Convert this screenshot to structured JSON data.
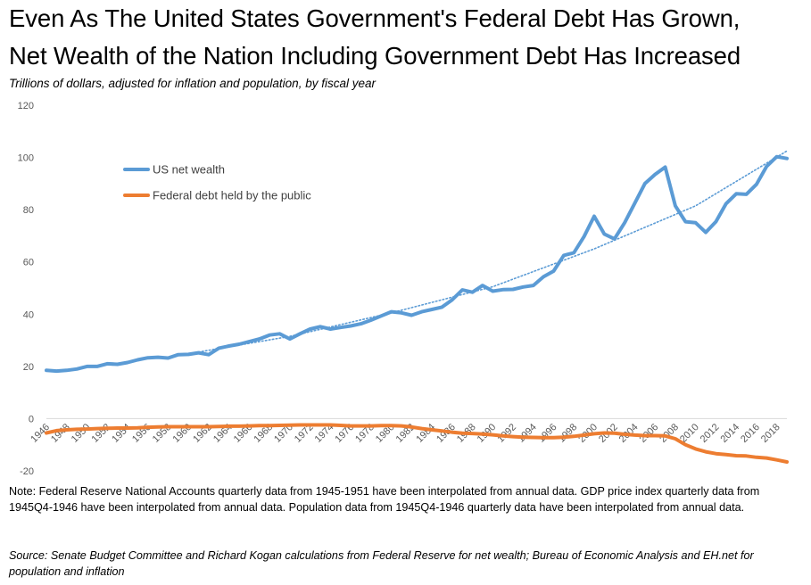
{
  "chart_data": {
    "type": "line",
    "title_line1": "Even As The United States Government's Federal Debt Has Grown,",
    "title_line2": "Net Wealth of the Nation Including Government Debt Has Increased",
    "subtitle": "Trillions of dollars, adjusted for inflation and population, by fiscal year",
    "ylim": [
      -20,
      120
    ],
    "yticks": [
      "120",
      "100",
      "80",
      "60",
      "40",
      "20",
      "0",
      "-20"
    ],
    "ytick_values": [
      120,
      100,
      80,
      60,
      40,
      20,
      0,
      -20
    ],
    "xlim": [
      1946,
      2019
    ],
    "x_tick_labels": [
      "1946",
      "1948",
      "1950",
      "1952",
      "1954",
      "1956",
      "1958",
      "1960",
      "1962",
      "1964",
      "1966",
      "1968",
      "1970",
      "1972",
      "1974",
      "1976",
      "1978",
      "1980",
      "1982",
      "1984",
      "1986",
      "1988",
      "1990",
      "1992",
      "1994",
      "1996",
      "1998",
      "2000",
      "2002",
      "2004",
      "2006",
      "2008",
      "2010",
      "2012",
      "2014",
      "2016",
      "2018"
    ],
    "x_tick_values": [
      1946,
      1948,
      1950,
      1952,
      1954,
      1956,
      1958,
      1960,
      1962,
      1964,
      1966,
      1968,
      1970,
      1972,
      1974,
      1976,
      1978,
      1980,
      1982,
      1984,
      1986,
      1988,
      1990,
      1992,
      1994,
      1996,
      1998,
      2000,
      2002,
      2004,
      2006,
      2008,
      2010,
      2012,
      2014,
      2016,
      2018
    ],
    "x": [
      1946,
      1947,
      1948,
      1949,
      1950,
      1951,
      1952,
      1953,
      1954,
      1955,
      1956,
      1957,
      1958,
      1959,
      1960,
      1961,
      1962,
      1963,
      1964,
      1965,
      1966,
      1967,
      1968,
      1969,
      1970,
      1971,
      1972,
      1973,
      1974,
      1975,
      1976,
      1977,
      1978,
      1979,
      1980,
      1981,
      1982,
      1983,
      1984,
      1985,
      1986,
      1987,
      1988,
      1989,
      1990,
      1991,
      1992,
      1993,
      1994,
      1995,
      1996,
      1997,
      1998,
      1999,
      2000,
      2001,
      2002,
      2003,
      2004,
      2005,
      2006,
      2007,
      2008,
      2009,
      2010,
      2011,
      2012,
      2013,
      2014,
      2015,
      2016,
      2017,
      2018,
      2019
    ],
    "series": [
      {
        "name": "US net wealth",
        "color": "#5B9BD5",
        "values": [
          18.5,
          18.2,
          18.5,
          19.0,
          20.0,
          20.0,
          21.0,
          20.8,
          21.5,
          22.5,
          23.3,
          23.5,
          23.2,
          24.5,
          24.6,
          25.2,
          24.5,
          27.0,
          27.8,
          28.5,
          29.5,
          30.5,
          32.0,
          32.5,
          30.5,
          32.5,
          34.3,
          35.2,
          34.3,
          34.9,
          35.5,
          36.3,
          37.7,
          39.3,
          40.9,
          40.5,
          39.6,
          40.9,
          41.8,
          42.7,
          45.5,
          49.3,
          48.4,
          51.0,
          48.8,
          49.4,
          49.5,
          50.4,
          51.0,
          54.3,
          56.5,
          62.5,
          63.5,
          69.7,
          77.5,
          70.7,
          68.8,
          75.0,
          82.5,
          90.0,
          93.5,
          96.3,
          81.5,
          75.4,
          75.0,
          71.3,
          75.4,
          82.3,
          86.1,
          85.9,
          89.7,
          96.6,
          100.3,
          99.6
        ]
      },
      {
        "name": "Federal debt held by the public",
        "color": "#ED7D31",
        "values": [
          -5.5,
          -4.6,
          -4.3,
          -4.1,
          -4.0,
          -3.8,
          -3.7,
          -3.6,
          -3.6,
          -3.5,
          -3.3,
          -3.2,
          -3.1,
          -3.1,
          -3.1,
          -3.1,
          -3.1,
          -3.0,
          -2.9,
          -2.9,
          -2.8,
          -2.7,
          -2.7,
          -2.6,
          -2.5,
          -2.4,
          -2.4,
          -2.4,
          -2.4,
          -2.6,
          -2.8,
          -2.8,
          -2.8,
          -2.7,
          -2.7,
          -2.8,
          -3.2,
          -3.8,
          -4.3,
          -4.7,
          -5.2,
          -5.6,
          -5.7,
          -5.9,
          -6.2,
          -6.6,
          -6.9,
          -7.1,
          -7.2,
          -7.3,
          -7.3,
          -7.1,
          -6.8,
          -6.3,
          -5.8,
          -5.5,
          -5.6,
          -6.0,
          -6.3,
          -6.5,
          -6.5,
          -6.6,
          -7.7,
          -10.0,
          -11.6,
          -12.7,
          -13.4,
          -13.8,
          -14.2,
          -14.3,
          -14.8,
          -15.1,
          -15.8,
          -16.6
        ]
      }
    ],
    "trendline": {
      "series": "US net wealth",
      "style": "dotted",
      "color": "#5B9BD5",
      "x": [
        1961,
        1970,
        1980,
        1990,
        2000,
        2010,
        2019
      ],
      "values": [
        25.5,
        31.5,
        40.5,
        50.5,
        65.0,
        81.5,
        102.5
      ]
    },
    "legend": [
      "US net wealth",
      "Federal debt held by the public"
    ]
  },
  "note": "Note:  Federal Reserve National Accounts quarterly data from 1945-1951  have been interpolated from annual data.  GDP price index quarterly data from 1945Q4-1946  have been interpolated from annual data.  Population data from 1945Q4-1946  quarterly data have been interpolated from annual data.",
  "source": "Source: Senate Budget Committee and Richard Kogan calculations from Federal Reserve for net wealth; Bureau of Economic Analysis and EH.net for population and inflation"
}
